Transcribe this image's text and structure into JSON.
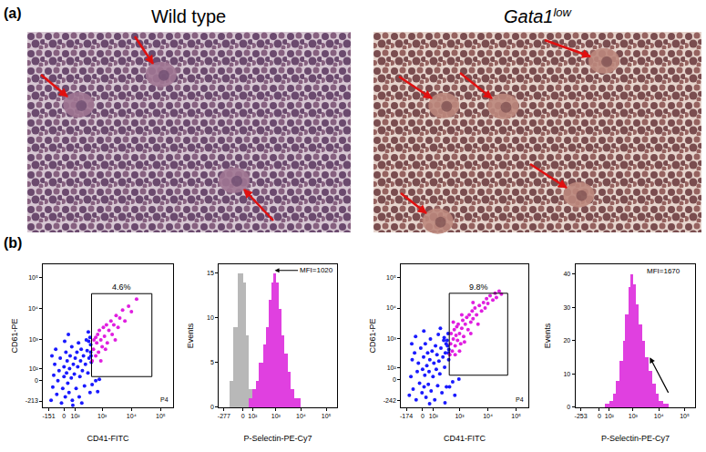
{
  "panel_a": {
    "label": "(a)",
    "images": [
      {
        "title": "Wild type",
        "arrows": 3
      },
      {
        "title": "Gata1",
        "title_superscript": "low",
        "arrows": 5
      }
    ]
  },
  "panel_b": {
    "label": "(b)"
  },
  "chart_data": [
    {
      "type": "scatter",
      "x_label": "CD41-FITC",
      "y_label": "CD61-PE",
      "log": true,
      "xlim": [
        -250,
        262144
      ],
      "ylim": [
        -350,
        262144
      ],
      "xticks": [
        -151,
        0,
        {
          "value": 100,
          "label": "10²"
        },
        {
          "value": 1000,
          "label": "10³"
        },
        {
          "value": 10000,
          "label": "10⁴"
        },
        {
          "value": 100000,
          "label": "10⁵"
        }
      ],
      "yticks": [
        -213,
        0,
        {
          "value": 100,
          "label": "10²"
        },
        {
          "value": 1000,
          "label": "10³"
        },
        {
          "value": 10000,
          "label": "10⁴"
        },
        {
          "value": 100000,
          "label": "10⁵"
        }
      ],
      "series": [
        {
          "color": "#1a1aff",
          "x": [
            -120,
            -100,
            -90,
            -80,
            -60,
            -50,
            -40,
            -30,
            -20,
            -10,
            0,
            0,
            10,
            15,
            20,
            25,
            30,
            40,
            45,
            50,
            60,
            65,
            70,
            80,
            90,
            100,
            110,
            120,
            130,
            140,
            150,
            160,
            170,
            180,
            200,
            220,
            240,
            260,
            280,
            300,
            320,
            350,
            380,
            400,
            420,
            450,
            400,
            380,
            600,
            410,
            700,
            800,
            340,
            -70,
            -110,
            5,
            35,
            75,
            190,
            330
          ],
          "y": [
            -200,
            -50,
            40,
            150,
            -120,
            0,
            80,
            250,
            -250,
            -60,
            30,
            120,
            -150,
            400,
            60,
            200,
            -20,
            -100,
            100,
            300,
            20,
            600,
            -200,
            150,
            50,
            250,
            -60,
            400,
            120,
            800,
            -150,
            30,
            200,
            500,
            80,
            300,
            -40,
            150,
            1000,
            450,
            60,
            250,
            -100,
            700,
            180,
            -30,
            400,
            1200,
            0,
            300,
            -90,
            10,
            900,
            500,
            300,
            900,
            1500,
            -300,
            -250,
            1800
          ]
        },
        {
          "color": "#e01ee0",
          "x": [
            450,
            500,
            520,
            600,
            650,
            700,
            750,
            800,
            900,
            1000,
            1100,
            1200,
            1400,
            1500,
            1700,
            2000,
            2200,
            2500,
            3000,
            3500,
            4000,
            5000,
            6000,
            8000,
            10000,
            15000,
            900,
            1300,
            2800,
            600
          ],
          "y": [
            200,
            500,
            1000,
            300,
            800,
            1500,
            400,
            2000,
            1000,
            600,
            2500,
            1300,
            3000,
            800,
            2000,
            4000,
            1500,
            3000,
            6000,
            2500,
            5000,
            9000,
            4000,
            12000,
            8000,
            20000,
            200,
            500,
            1000,
            1200
          ]
        }
      ],
      "gate": {
        "x": [
          430,
          50000
        ],
        "y": [
          30,
          30000
        ],
        "label": "4.6%",
        "name": "P4"
      }
    },
    {
      "type": "histogram",
      "x_label": "P-Selectin-PE-Cy7",
      "y_label": "Events",
      "log": "x",
      "xlim": [
        -450,
        262144
      ],
      "ylim": [
        0,
        16
      ],
      "xticks": [
        -277,
        0,
        {
          "value": 100,
          "label": "10²"
        },
        {
          "value": 1000,
          "label": "10³"
        },
        {
          "value": 10000,
          "label": "10⁴"
        },
        {
          "value": 100000,
          "label": "10⁵"
        }
      ],
      "yticks": [
        0,
        5,
        10,
        15
      ],
      "series": [
        {
          "color": "#b8b8b8",
          "bins": [
            -150,
            -100,
            -50,
            0,
            25,
            50,
            100
          ],
          "counts": [
            3,
            9,
            15,
            14,
            8,
            2
          ]
        },
        {
          "color": "#e040e0",
          "bins": [
            0,
            25,
            50,
            100,
            150,
            200,
            300,
            400,
            500,
            650,
            800,
            1000,
            1300,
            1700,
            2200,
            3000,
            4000,
            5500,
            7500,
            10000,
            15000,
            25000
          ],
          "counts": [
            0,
            0,
            1,
            2,
            3,
            5,
            7,
            9,
            12,
            14,
            15,
            14,
            11,
            8,
            6,
            4,
            2,
            1,
            1,
            0,
            0
          ]
        }
      ],
      "annotations": [
        {
          "text": "MFI=1020",
          "x": 40000,
          "y": 15.3,
          "arrow_to": [
            900,
            15.3
          ]
        }
      ]
    },
    {
      "type": "scatter",
      "x_label": "CD41-FITC",
      "y_label": "CD61-PE",
      "log": true,
      "xlim": [
        -280,
        262144
      ],
      "ylim": [
        -400,
        262144
      ],
      "xticks": [
        -174,
        0,
        {
          "value": 100,
          "label": "10²"
        },
        {
          "value": 1000,
          "label": "10³"
        },
        {
          "value": 10000,
          "label": "10⁴"
        },
        {
          "value": 100000,
          "label": "10⁵"
        }
      ],
      "yticks": [
        -242,
        0,
        {
          "value": 100,
          "label": "10²"
        },
        {
          "value": 1000,
          "label": "10³"
        },
        {
          "value": 10000,
          "label": "10⁴"
        },
        {
          "value": 100000,
          "label": "10⁵"
        }
      ],
      "series": [
        {
          "color": "#1a1aff",
          "x": [
            -130,
            -110,
            -95,
            -85,
            -70,
            -55,
            -45,
            -35,
            -25,
            -15,
            -5,
            0,
            8,
            12,
            18,
            22,
            28,
            35,
            42,
            48,
            55,
            62,
            68,
            75,
            85,
            95,
            105,
            115,
            125,
            135,
            145,
            155,
            165,
            175,
            190,
            210,
            230,
            250,
            270,
            290,
            310,
            340,
            370,
            390,
            410,
            440,
            400,
            360,
            570,
            415,
            680,
            330,
            280,
            950,
            -100,
            -60,
            10,
            60,
            200,
            300
          ],
          "y": [
            -150,
            20,
            200,
            -80,
            350,
            -220,
            60,
            150,
            -30,
            500,
            -120,
            80,
            250,
            -60,
            30,
            700,
            -180,
            120,
            350,
            -40,
            60,
            200,
            1000,
            -100,
            400,
            20,
            150,
            -220,
            600,
            80,
            300,
            -50,
            1400,
            180,
            40,
            500,
            -120,
            250,
            900,
            100,
            350,
            -60,
            600,
            1500,
            200,
            -60,
            350,
            900,
            -20,
            450,
            -150,
            700,
            1100,
            0,
            700,
            1200,
            1800,
            -300,
            2200,
            -280
          ]
        },
        {
          "color": "#e01ee0",
          "x": [
            450,
            480,
            500,
            550,
            600,
            650,
            700,
            750,
            800,
            850,
            900,
            1000,
            1100,
            1200,
            1300,
            1400,
            1600,
            1800,
            2000,
            2200,
            2500,
            2800,
            3000,
            3500,
            4000,
            4500,
            5000,
            6000,
            7000,
            8000,
            9000,
            10000,
            12000,
            15000,
            18000,
            20000,
            25000,
            700,
            1000,
            1500,
            2500,
            600,
            1200,
            3000,
            30000
          ],
          "y": [
            300,
            700,
            1500,
            400,
            1000,
            2000,
            600,
            1300,
            2500,
            900,
            3000,
            1500,
            700,
            2200,
            4000,
            1200,
            3000,
            5000,
            2000,
            6000,
            3500,
            8000,
            4500,
            10000,
            6000,
            3000,
            12000,
            8000,
            15000,
            10000,
            20000,
            14000,
            25000,
            18000,
            30000,
            22000,
            35000,
            300,
            400,
            800,
            1500,
            3500,
            6000,
            15000,
            28000
          ]
        }
      ],
      "gate": {
        "x": [
          430,
          50000
        ],
        "y": [
          30,
          30000
        ],
        "label": "9.8%",
        "name": "P4"
      }
    },
    {
      "type": "histogram",
      "x_label": "P-Selectin-PE-Cy7",
      "y_label": "Events",
      "log": "x",
      "xlim": [
        -420,
        262144
      ],
      "ylim": [
        0,
        43
      ],
      "xticks": [
        -253,
        0,
        {
          "value": 100,
          "label": "10²"
        },
        {
          "value": 1000,
          "label": "10³"
        },
        {
          "value": 10000,
          "label": "10⁴"
        },
        {
          "value": 100000,
          "label": "10⁵"
        }
      ],
      "yticks": [
        0,
        10,
        20,
        30,
        40
      ],
      "series": [
        {
          "color": "#e040e0",
          "bins": [
            0,
            25,
            50,
            100,
            150,
            200,
            300,
            400,
            500,
            650,
            800,
            1000,
            1300,
            1700,
            2200,
            3000,
            4000,
            5500,
            7500,
            10000,
            15000,
            25000
          ],
          "counts": [
            0,
            0,
            1,
            2,
            4,
            8,
            14,
            20,
            28,
            36,
            40,
            37,
            31,
            25,
            20,
            15,
            11,
            7,
            4,
            2,
            1
          ]
        }
      ],
      "annotations": [
        {
          "text": "MFI=1670",
          "x": 15000,
          "y": 41
        }
      ],
      "arrows": [
        {
          "from": [
            25000,
            4
          ],
          "to": [
            4500,
            15
          ]
        }
      ]
    }
  ]
}
